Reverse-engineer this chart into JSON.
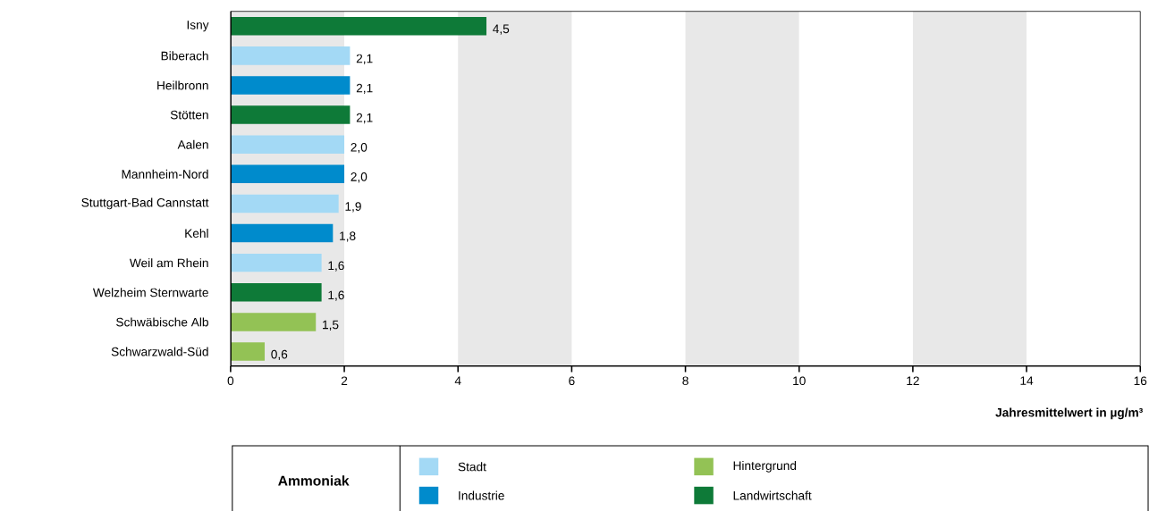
{
  "chart_data": {
    "type": "bar",
    "orientation": "horizontal",
    "categories": [
      "Isny",
      "Biberach",
      "Heilbronn",
      "Stötten",
      "Aalen",
      "Mannheim-Nord",
      "Stuttgart-Bad Cannstatt",
      "Kehl",
      "Weil am Rhein",
      "Welzheim Sternwarte",
      "Schwäbische Alb",
      "Schwarzwald-Süd"
    ],
    "series": [
      {
        "name": "Stadt",
        "color": "#a3d9f5",
        "values": [
          null,
          2.1,
          null,
          null,
          2.0,
          null,
          1.9,
          null,
          1.6,
          null,
          null,
          null
        ],
        "value_labels": [
          null,
          "2,1",
          null,
          null,
          "2,0",
          null,
          "1,9",
          null,
          "1,6",
          null,
          null,
          null
        ]
      },
      {
        "name": "Industrie",
        "color": "#008bcc",
        "values": [
          null,
          null,
          2.1,
          null,
          null,
          2.0,
          null,
          1.8,
          null,
          null,
          null,
          null
        ],
        "value_labels": [
          null,
          null,
          "2,1",
          null,
          null,
          "2,0",
          null,
          "1,8",
          null,
          null,
          null,
          null
        ]
      },
      {
        "name": "Hintergrund",
        "color": "#93c255",
        "values": [
          null,
          null,
          null,
          null,
          null,
          null,
          null,
          null,
          null,
          null,
          1.5,
          0.6
        ],
        "value_labels": [
          null,
          null,
          null,
          null,
          null,
          null,
          null,
          null,
          null,
          null,
          "1,5",
          "0,6"
        ]
      },
      {
        "name": "Landwirtschaft",
        "color": "#0e7a38",
        "values": [
          4.5,
          null,
          null,
          2.1,
          null,
          null,
          null,
          null,
          null,
          1.6,
          null,
          null
        ],
        "value_labels": [
          "4,5",
          null,
          null,
          "2,1",
          null,
          null,
          null,
          null,
          null,
          "1,6",
          null,
          null
        ]
      }
    ],
    "xlim": [
      0,
      16
    ],
    "xticks": [
      0,
      2,
      4,
      6,
      8,
      10,
      12,
      14,
      16
    ],
    "xlabel": "Jahresmittelwert in µg/m³",
    "legend_title": "Ammoniak",
    "legend": "bottom",
    "bands": [
      {
        "axis": "x",
        "from": 0,
        "to": 2,
        "color": "#e8e8e8"
      },
      {
        "axis": "x",
        "from": 4,
        "to": 6,
        "color": "#e8e8e8"
      },
      {
        "axis": "x",
        "from": 8,
        "to": 10,
        "color": "#e8e8e8"
      },
      {
        "axis": "x",
        "from": 12,
        "to": 14,
        "color": "#e8e8e8"
      }
    ]
  }
}
